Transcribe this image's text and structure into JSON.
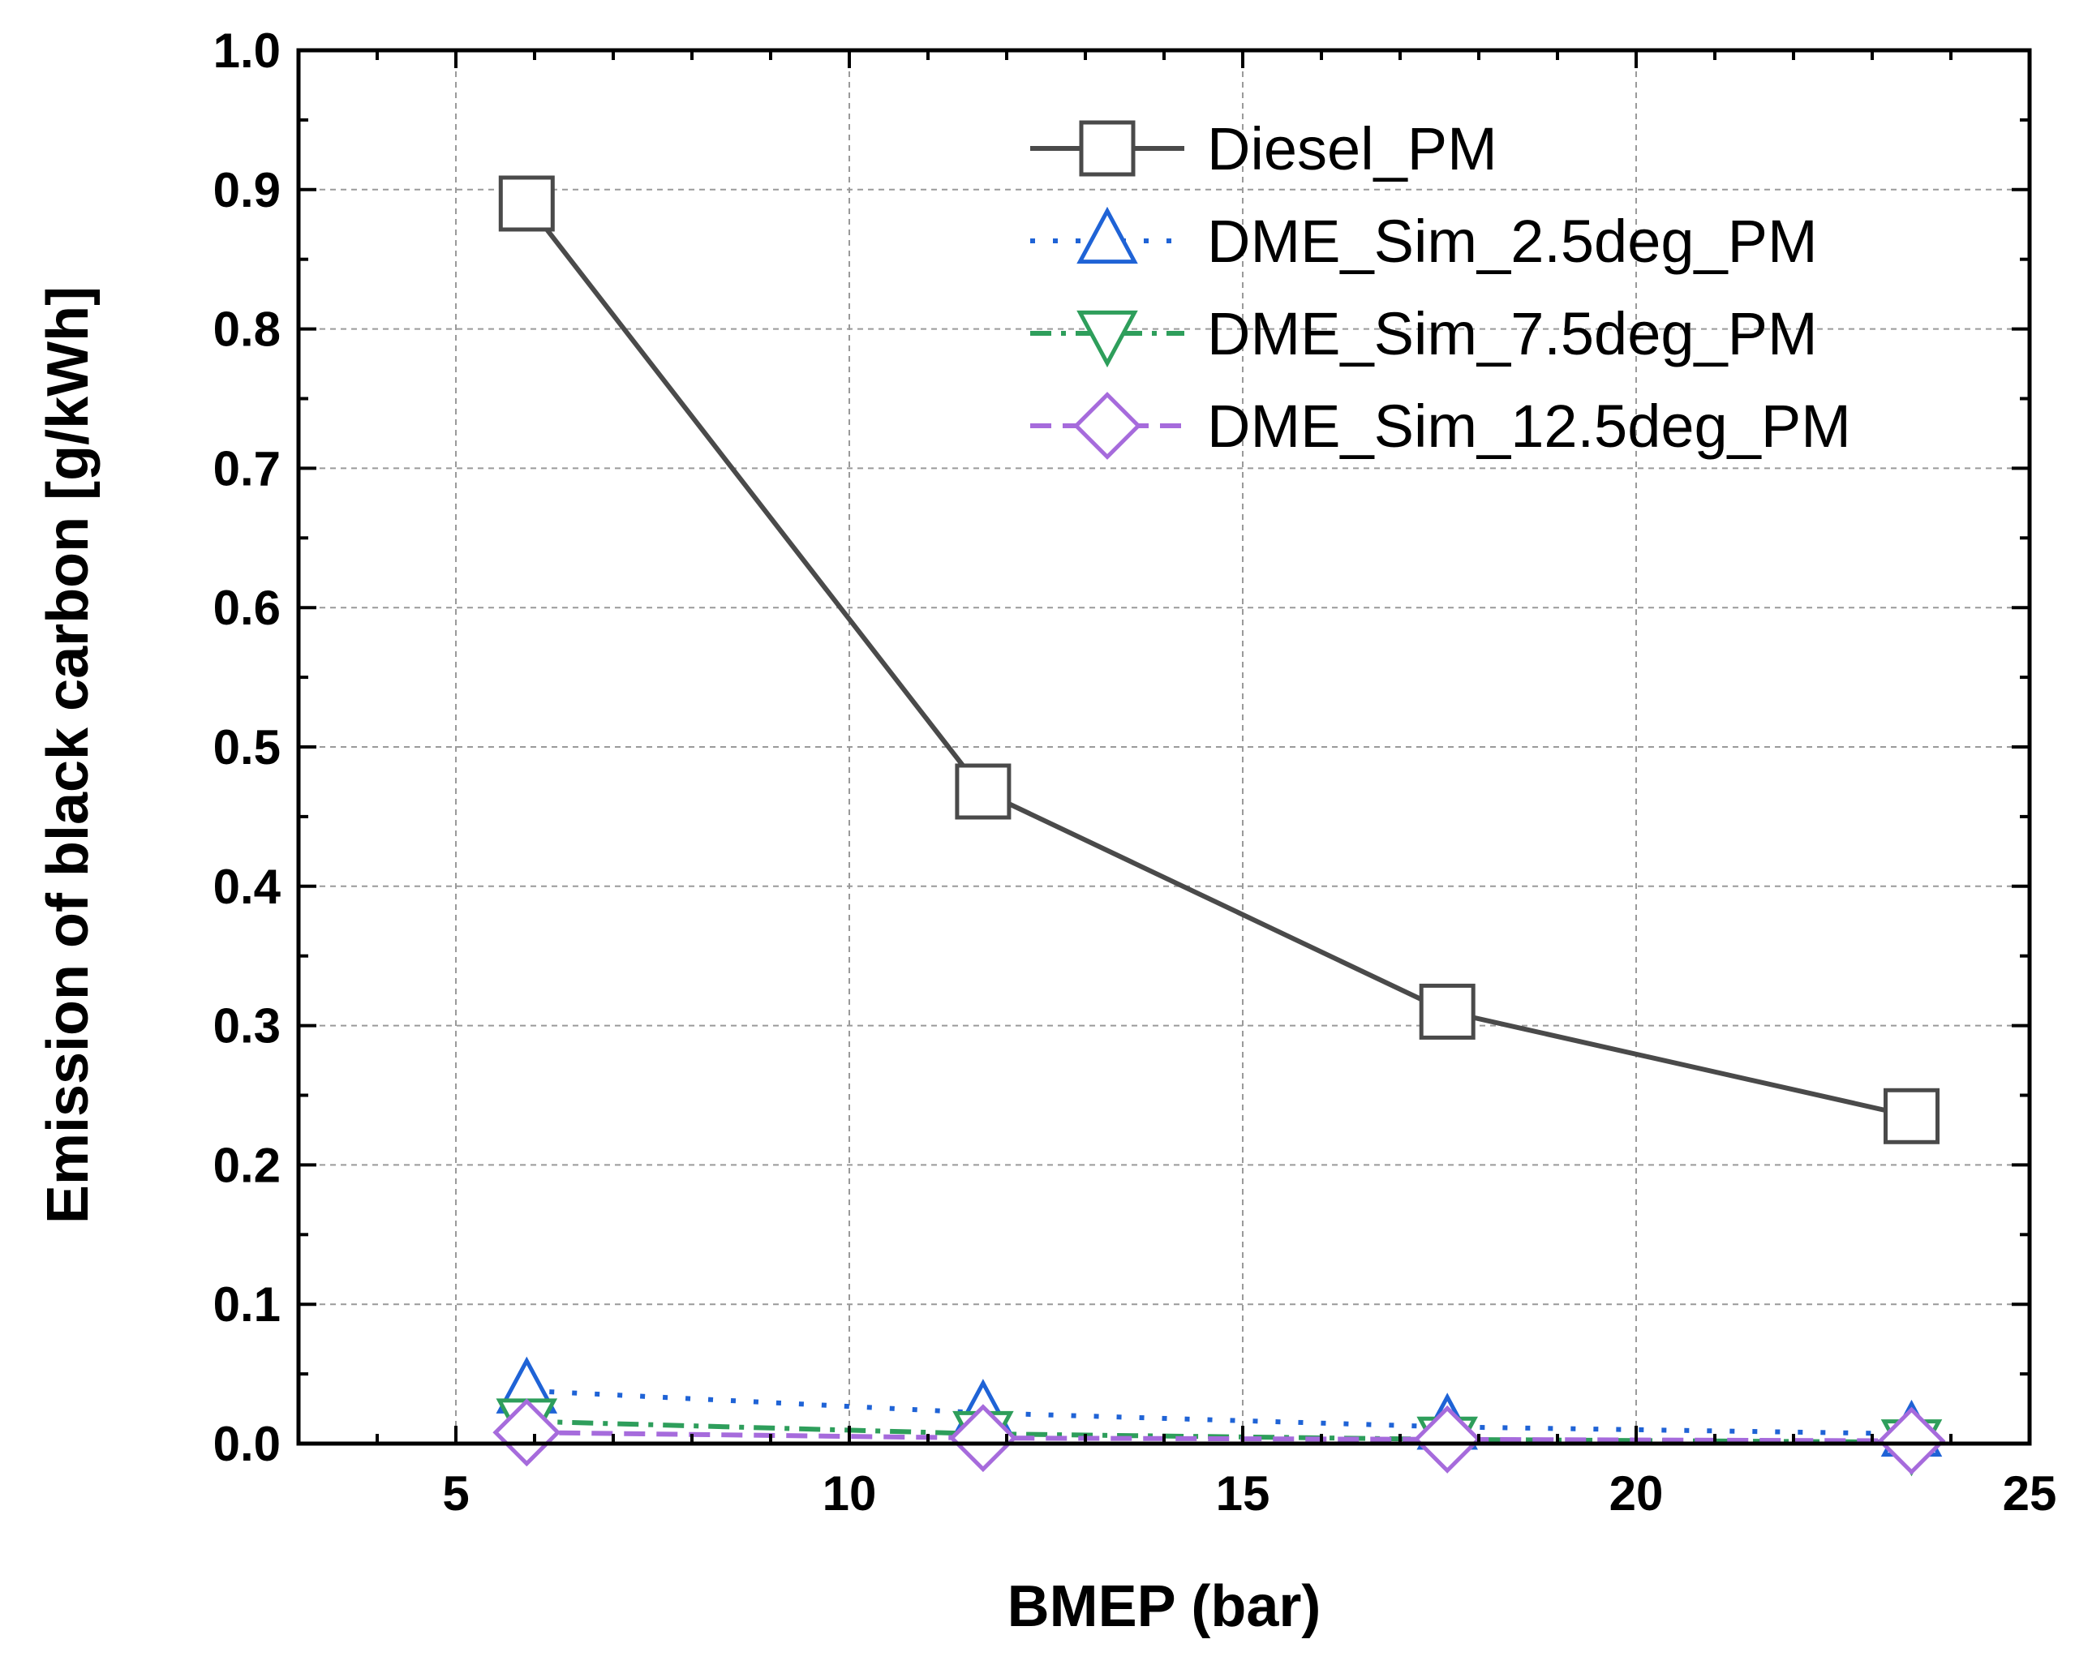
{
  "chart_data": {
    "type": "line",
    "title": "",
    "xlabel": "BMEP (bar)",
    "ylabel": "Emission of black carbon [g/kWh]",
    "xlim": [
      3,
      25
    ],
    "ylim": [
      0.0,
      1.0
    ],
    "x_ticks": [
      5,
      10,
      15,
      20,
      25
    ],
    "x_tick_labels": [
      "5",
      "10",
      "15",
      "20",
      "25"
    ],
    "y_ticks": [
      0.0,
      0.1,
      0.2,
      0.3,
      0.4,
      0.5,
      0.6,
      0.7,
      0.8,
      0.9,
      1.0
    ],
    "y_tick_labels": [
      "0.0",
      "0.1",
      "0.2",
      "0.3",
      "0.4",
      "0.5",
      "0.6",
      "0.7",
      "0.8",
      "0.9",
      "1.0"
    ],
    "grid": true,
    "legend_position": "top-right",
    "series": [
      {
        "name": "Diesel_PM",
        "x": [
          5.9,
          11.7,
          17.6,
          23.5
        ],
        "y": [
          0.89,
          0.468,
          0.31,
          0.235
        ],
        "marker": "square",
        "line_style": "solid",
        "color": "#4a4a4a"
      },
      {
        "name": "DME_Sim_2.5deg_PM",
        "x": [
          5.9,
          11.7,
          17.6,
          23.5
        ],
        "y": [
          0.038,
          0.022,
          0.012,
          0.007
        ],
        "marker": "triangle-up",
        "line_style": "dotted",
        "color": "#1f63d6"
      },
      {
        "name": "DME_Sim_7.5deg_PM",
        "x": [
          5.9,
          11.7,
          17.6,
          23.5
        ],
        "y": [
          0.016,
          0.007,
          0.003,
          0.001
        ],
        "marker": "triangle-down",
        "line_style": "dash-dot",
        "color": "#2e9e5b"
      },
      {
        "name": "DME_Sim_12.5deg_PM",
        "x": [
          5.9,
          11.7,
          17.6,
          23.5
        ],
        "y": [
          0.008,
          0.004,
          0.003,
          0.002
        ],
        "marker": "diamond",
        "line_style": "dashed",
        "color": "#a66bdc"
      }
    ]
  }
}
